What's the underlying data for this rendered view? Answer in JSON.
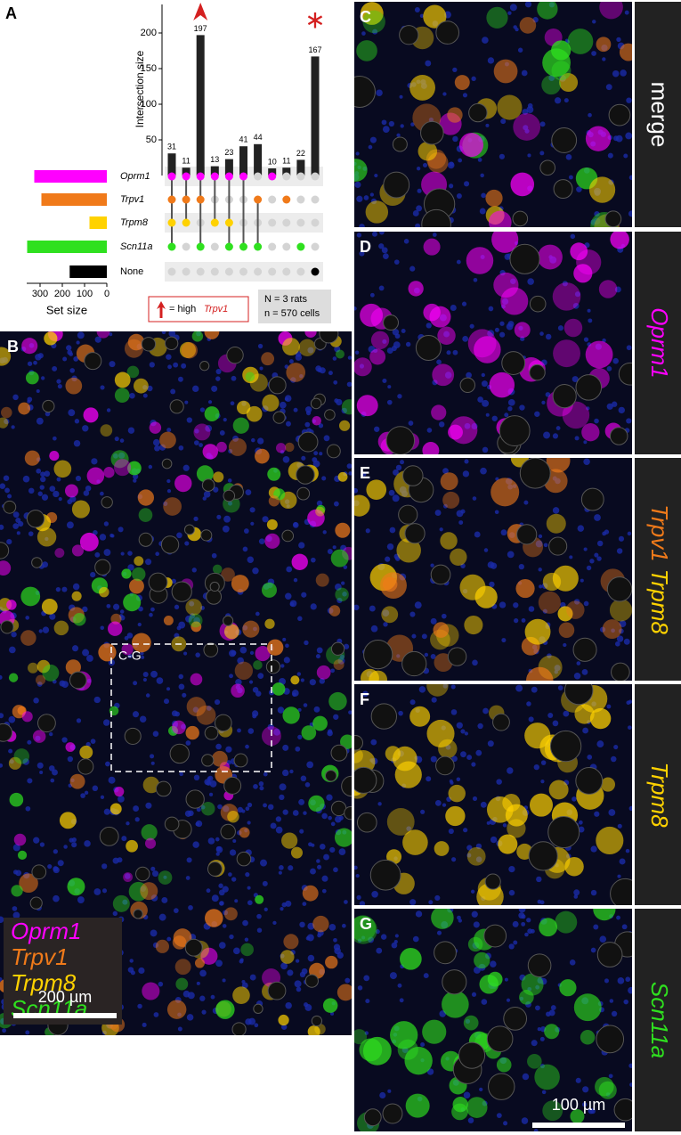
{
  "chart_data": {
    "type": "upset",
    "y_label": "Intersection size",
    "values": [
      31,
      11,
      197,
      13,
      23,
      41,
      44,
      10,
      11,
      22,
      167
    ],
    "memberships": [
      [
        0,
        1,
        2,
        3
      ],
      [
        0,
        1,
        2
      ],
      [
        0,
        1,
        3
      ],
      [
        0,
        2
      ],
      [
        0,
        2,
        3
      ],
      [
        0,
        3
      ],
      [
        1,
        3
      ],
      [
        0
      ],
      [
        1
      ],
      [
        3
      ],
      [
        4
      ]
    ],
    "ylim": [
      0,
      240
    ],
    "yticks": [
      50,
      100,
      150,
      200
    ],
    "bar_color": "#222222",
    "sets": [
      "Oprm1",
      "Trpv1",
      "Trpm8",
      "Scn11a",
      "None"
    ],
    "set_colors": [
      "#ff00ff",
      "#f07a1a",
      "#ffd200",
      "#2fe01f",
      "#000000"
    ],
    "set_sizes": [
      326,
      294,
      78,
      358,
      167
    ],
    "set_size_label": "Set size",
    "set_size_xlim": [
      0,
      360
    ],
    "set_size_xticks": [
      300,
      200,
      100,
      0
    ],
    "legend_note": [
      "= high",
      "Trpv1"
    ],
    "sample_note": [
      "N = 3 rats",
      "n = 570 cells"
    ]
  },
  "figure": {
    "panel_labels": [
      "A",
      "B"
    ],
    "roi_label": "C-G",
    "overview_legend": [
      "Oprm1",
      "Trpv1",
      "Trpm8",
      "Scn11a"
    ],
    "scale_bars": [
      "200 µm",
      "100 µm"
    ],
    "panels": [
      {
        "letter": "C",
        "channels": [
          "merge"
        ]
      },
      {
        "letter": "D",
        "channels": [
          "Oprm1"
        ]
      },
      {
        "letter": "E",
        "channels": [
          "Trpv1",
          "Trpm8"
        ]
      },
      {
        "letter": "F",
        "channels": [
          "Trpm8"
        ]
      },
      {
        "letter": "G",
        "channels": [
          "Scn11a"
        ]
      }
    ]
  }
}
